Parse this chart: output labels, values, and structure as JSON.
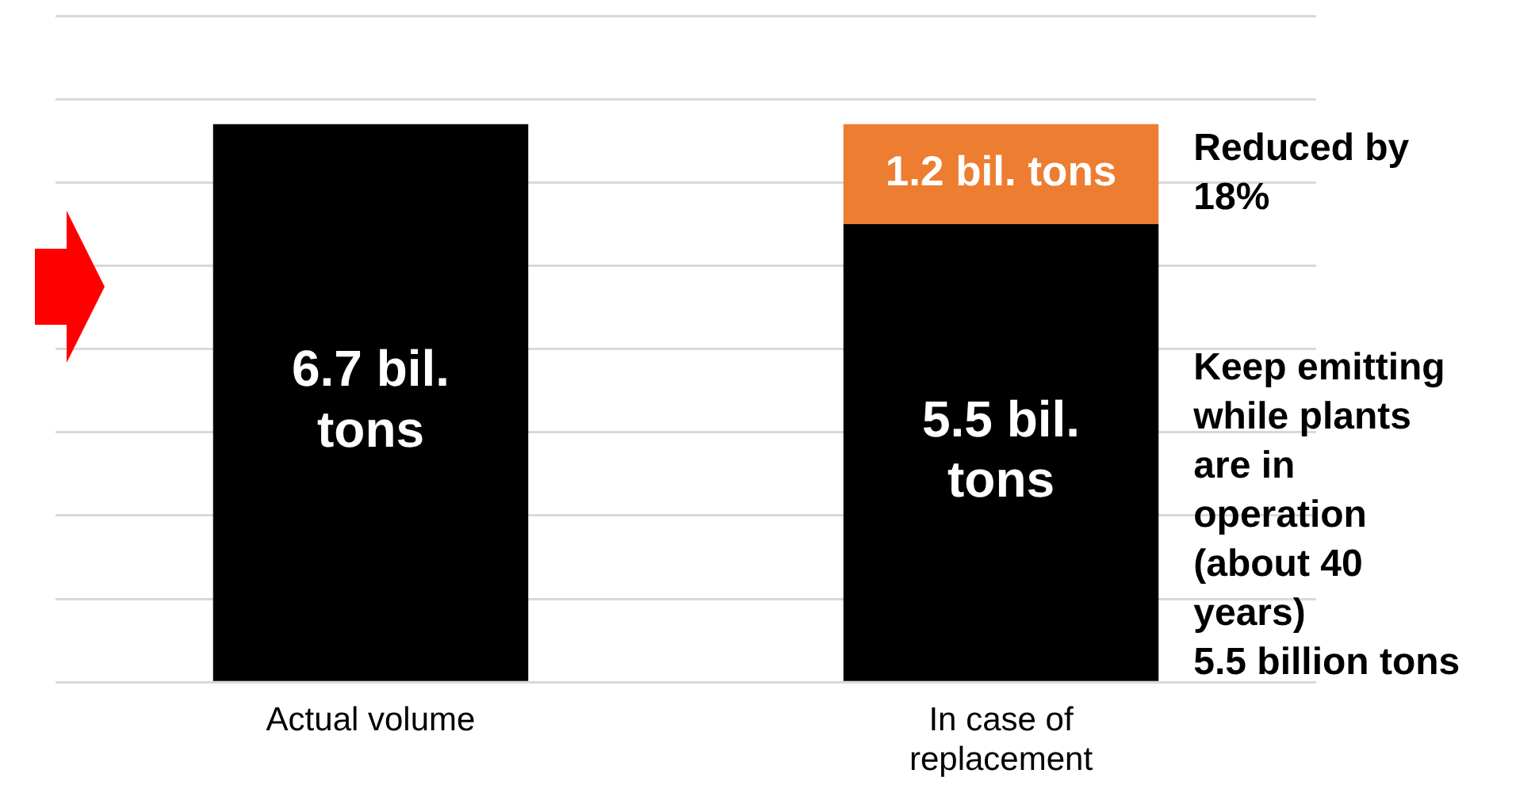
{
  "chart_data": {
    "type": "bar",
    "stacked": true,
    "categories": [
      "Actual volume",
      "In case of replacement"
    ],
    "series": [
      {
        "color": "#000000",
        "values": [
          6.7,
          5.5
        ],
        "value_labels": [
          "6.7 bil. tons",
          "5.5 bil. tons"
        ]
      },
      {
        "color": "#ed7d31",
        "values": [
          null,
          1.2
        ],
        "value_labels": [
          null,
          "1.2 bil. tons"
        ]
      }
    ],
    "ylim": [
      0,
      8
    ],
    "yticks": [
      {
        "value": 0,
        "label": null
      },
      {
        "value": 1,
        "label": null
      },
      {
        "value": 2,
        "label": null
      },
      {
        "value": 3,
        "label": null
      },
      {
        "value": 4,
        "label": null
      },
      {
        "value": 5,
        "label": null
      },
      {
        "value": 6,
        "label": null
      },
      {
        "value": 7,
        "label": null
      },
      {
        "value": 8,
        "label": null
      }
    ],
    "grid": "y",
    "legend": false,
    "tick_labels": "x",
    "annotations": [
      "Reduced by 18%",
      "Keep emitting while plants are in operation (about 40 years)\n5.5 billion tons"
    ]
  }
}
